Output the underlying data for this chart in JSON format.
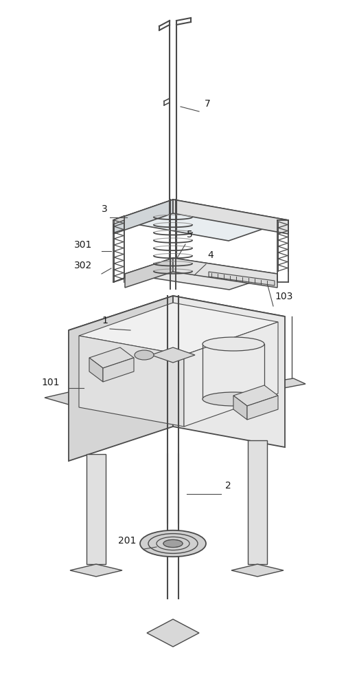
{
  "bg_color": "#ffffff",
  "lc": "#4a4a4a",
  "lc_light": "#888888",
  "fill_top": "#f0f0f0",
  "fill_left": "#d8d8d8",
  "fill_right": "#e8e8e8",
  "fill_inner": "#ececec",
  "lw": 1.0,
  "fig_w": 5.04,
  "fig_h": 10.0,
  "dpi": 100
}
